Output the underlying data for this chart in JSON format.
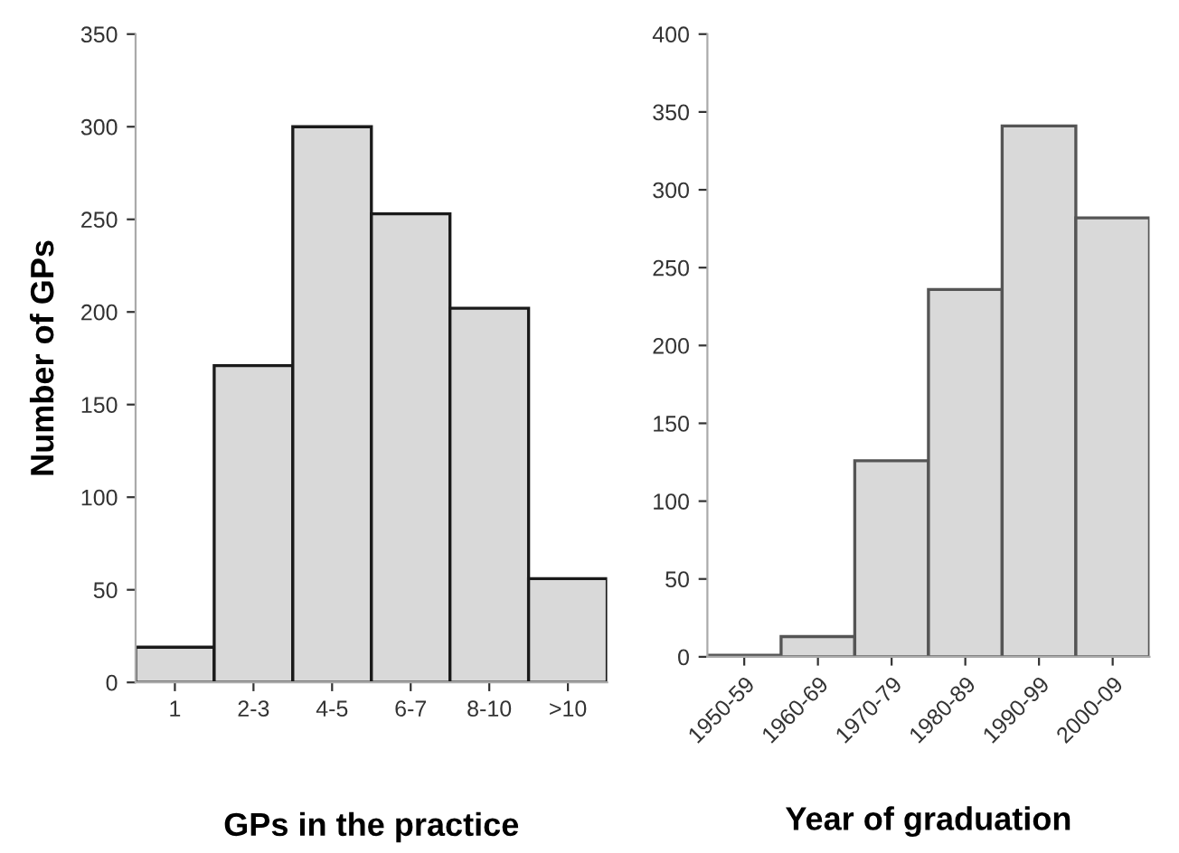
{
  "chart_data": [
    {
      "type": "bar",
      "xlabel": "GPs in the practice",
      "ylabel": "Number of GPs",
      "categories": [
        "1",
        "2-3",
        "4-5",
        "6-7",
        "8-10",
        ">10"
      ],
      "values": [
        19,
        171,
        300,
        253,
        202,
        56
      ],
      "color": "#d9d9d9",
      "ylim": [
        0,
        350
      ],
      "yticks": [
        0,
        50,
        100,
        150,
        200,
        250,
        300,
        350
      ],
      "grid": false
    },
    {
      "type": "bar",
      "xlabel": "Year of graduation",
      "categories": [
        "1950-59",
        "1960-69",
        "1970-79",
        "1980-89",
        "1990-99",
        "2000-09"
      ],
      "values": [
        1,
        13,
        126,
        236,
        341,
        282
      ],
      "color": "#d9d9d9",
      "ylim": [
        0,
        400
      ],
      "yticks": [
        0,
        50,
        100,
        150,
        200,
        250,
        300,
        350,
        400
      ],
      "grid": false
    }
  ]
}
